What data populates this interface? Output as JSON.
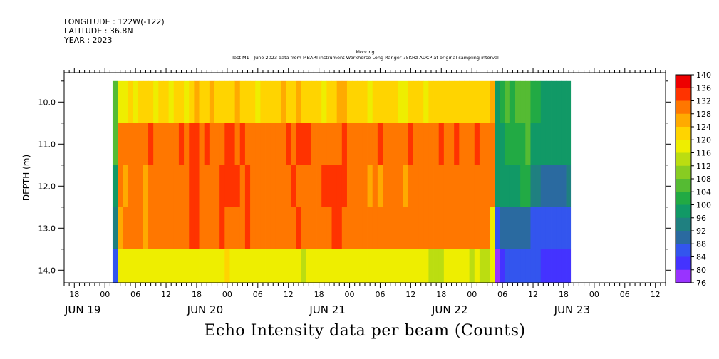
{
  "header": {
    "longitude": "LONGITUDE : 122W(-122)",
    "latitude": "LATITUDE : 36.8N",
    "year": "YEAR : 2023"
  },
  "title": {
    "line1": "Mooring",
    "line2": "Test M1 - June 2023 data from MBARI instrument Workhorse Long Ranger 75KHz ADCP at original sampling interval"
  },
  "x_axis_title": "Echo Intensity data per beam (Counts)",
  "chart_data": {
    "type": "heatmap",
    "title": "Test M1 - June 2023 data from MBARI instrument Workhorse Long Ranger 75KHz ADCP at original sampling interval",
    "xlabel": "Echo Intensity data per beam (Counts)",
    "ylabel": "DEPTH (m)",
    "x_range_hours": [
      -8,
      110
    ],
    "x_ticks": [
      {
        "hour": -6,
        "label": "18"
      },
      {
        "hour": 0,
        "label": "00"
      },
      {
        "hour": 6,
        "label": "06"
      },
      {
        "hour": 12,
        "label": "12"
      },
      {
        "hour": 18,
        "label": "18"
      },
      {
        "hour": 24,
        "label": "00"
      },
      {
        "hour": 30,
        "label": "06"
      },
      {
        "hour": 36,
        "label": "12"
      },
      {
        "hour": 42,
        "label": "18"
      },
      {
        "hour": 48,
        "label": "00"
      },
      {
        "hour": 54,
        "label": "06"
      },
      {
        "hour": 60,
        "label": "12"
      },
      {
        "hour": 66,
        "label": "18"
      },
      {
        "hour": 72,
        "label": "00"
      },
      {
        "hour": 78,
        "label": "06"
      },
      {
        "hour": 84,
        "label": "12"
      },
      {
        "hour": 90,
        "label": "18"
      },
      {
        "hour": 96,
        "label": "00"
      },
      {
        "hour": 102,
        "label": "06"
      },
      {
        "hour": 108,
        "label": "12"
      }
    ],
    "date_labels": [
      {
        "hour": -8,
        "label": "JUN 19"
      },
      {
        "hour": 16,
        "label": "JUN 20"
      },
      {
        "hour": 40,
        "label": "JUN 21"
      },
      {
        "hour": 64,
        "label": "JUN 22"
      },
      {
        "hour": 88,
        "label": "JUN 23"
      }
    ],
    "y_range": [
      9.3,
      14.3
    ],
    "y_ticks": [
      "10.0",
      "11.0",
      "12.0",
      "13.0",
      "14.0"
    ],
    "depth_bins": [
      10.0,
      11.0,
      12.0,
      13.0,
      14.0
    ],
    "colorbar": {
      "levels": [
        76,
        80,
        84,
        88,
        92,
        96,
        100,
        104,
        108,
        112,
        116,
        120,
        124,
        128,
        132,
        136,
        140
      ],
      "labels": [
        "76",
        "80",
        "84",
        "88",
        "92",
        "96",
        "100",
        "104",
        "108",
        "112",
        "116",
        "120",
        "124",
        "128",
        "132",
        "136",
        "140"
      ],
      "colors": [
        "#cc22ee",
        "#9933ff",
        "#4433ff",
        "#3355ee",
        "#2a6aa0",
        "#1f8080",
        "#119966",
        "#22aa44",
        "#55bb33",
        "#88cc22",
        "#bbdd11",
        "#eeee00",
        "#ffd400",
        "#ffaa00",
        "#ff7700",
        "#ff3300",
        "#ee0000",
        "#aa0000"
      ]
    },
    "data_start_hour": 1.5,
    "time_step_hours": 1,
    "rows": [
      {
        "depth": 10.0,
        "values": [
          104,
          119,
          118,
          120,
          119,
          121,
          122,
          120,
          119,
          121,
          120,
          118,
          120,
          121,
          119,
          123,
          124,
          120,
          122,
          124,
          123,
          122,
          123,
          121,
          124,
          122,
          120,
          121,
          119,
          122,
          120,
          121,
          122,
          124,
          121,
          122,
          125,
          123,
          121,
          122,
          120,
          119,
          122,
          123,
          124,
          125,
          123,
          122,
          121,
          120,
          119,
          121,
          122,
          120,
          121,
          122,
          119,
          118,
          120,
          122,
          121,
          119,
          120,
          122,
          121,
          120,
          122,
          123,
          121,
          120,
          122,
          121,
          122,
          123,
          126,
          98,
          100,
          104,
          102,
          105,
          104,
          107,
          103,
          101,
          98,
          98,
          98,
          97,
          98,
          98
        ]
      },
      {
        "depth": 11.0,
        "values": [
          104,
          130,
          131,
          129,
          130,
          131,
          130,
          132,
          130,
          131,
          129,
          130,
          131,
          132,
          130,
          134,
          133,
          131,
          132,
          130,
          131,
          130,
          134,
          133,
          131,
          132,
          131,
          130,
          129,
          130,
          131,
          130,
          129,
          131,
          132,
          130,
          133,
          134,
          132,
          131,
          130,
          129,
          130,
          131,
          130,
          132,
          131,
          130,
          129,
          130,
          131,
          130,
          132,
          131,
          130,
          129,
          131,
          130,
          132,
          131,
          130,
          129,
          131,
          130,
          132,
          131,
          130,
          132,
          131,
          130,
          129,
          132,
          131,
          130,
          129,
          98,
          99,
          101,
          100,
          102,
          101,
          104,
          98,
          97,
          96,
          96,
          96,
          96,
          96,
          96
        ]
      },
      {
        "depth": 12.0,
        "values": [
          98,
          128,
          127,
          128,
          129,
          128,
          127,
          128,
          129,
          128,
          130,
          131,
          130,
          129,
          131,
          133,
          132,
          131,
          130,
          131,
          130,
          132,
          133,
          134,
          133,
          131,
          132,
          130,
          129,
          130,
          131,
          130,
          129,
          131,
          130,
          132,
          131,
          130,
          131,
          130,
          131,
          132,
          133,
          134,
          135,
          133,
          131,
          130,
          129,
          128,
          127,
          128,
          127,
          128,
          129,
          128,
          128,
          127,
          129,
          131,
          130,
          129,
          130,
          128,
          131,
          130,
          129,
          131,
          130,
          129,
          131,
          130,
          131,
          130,
          129,
          96,
          97,
          96,
          97,
          98,
          100,
          101,
          94,
          92,
          91,
          90,
          90,
          90,
          91,
          92
        ]
      },
      {
        "depth": 13.0,
        "values": [
          93,
          127,
          128,
          128,
          129,
          128,
          127,
          130,
          129,
          128,
          130,
          131,
          130,
          129,
          131,
          133,
          134,
          131,
          130,
          131,
          130,
          132,
          131,
          130,
          131,
          130,
          132,
          130,
          129,
          130,
          131,
          130,
          129,
          131,
          130,
          131,
          132,
          131,
          130,
          131,
          129,
          130,
          131,
          132,
          133,
          131,
          130,
          129,
          128,
          129,
          130,
          129,
          130,
          131,
          130,
          129,
          128,
          129,
          130,
          131,
          130,
          129,
          130,
          131,
          130,
          129,
          130,
          131,
          129,
          130,
          128,
          129,
          130,
          129,
          117,
          87,
          88,
          89,
          90,
          91,
          90,
          88,
          87,
          86,
          86,
          85,
          85,
          85,
          86,
          86
        ]
      },
      {
        "depth": 14.0,
        "values": [
          84,
          117,
          118,
          116,
          117,
          118,
          117,
          116,
          117,
          118,
          117,
          116,
          117,
          118,
          117,
          116,
          117,
          118,
          117,
          116,
          117,
          118,
          120,
          119,
          118,
          117,
          116,
          117,
          118,
          117,
          116,
          117,
          116,
          117,
          118,
          117,
          116,
          115,
          116,
          117,
          118,
          117,
          116,
          117,
          118,
          117,
          116,
          117,
          118,
          117,
          116,
          117,
          118,
          117,
          116,
          117,
          116,
          117,
          118,
          117,
          116,
          117,
          115,
          114,
          114,
          116,
          117,
          116,
          117,
          116,
          115,
          117,
          114,
          112,
          118,
          79,
          82,
          84,
          84,
          85,
          84,
          86,
          85,
          84,
          83,
          82,
          80,
          80,
          81,
          82
        ]
      }
    ]
  }
}
